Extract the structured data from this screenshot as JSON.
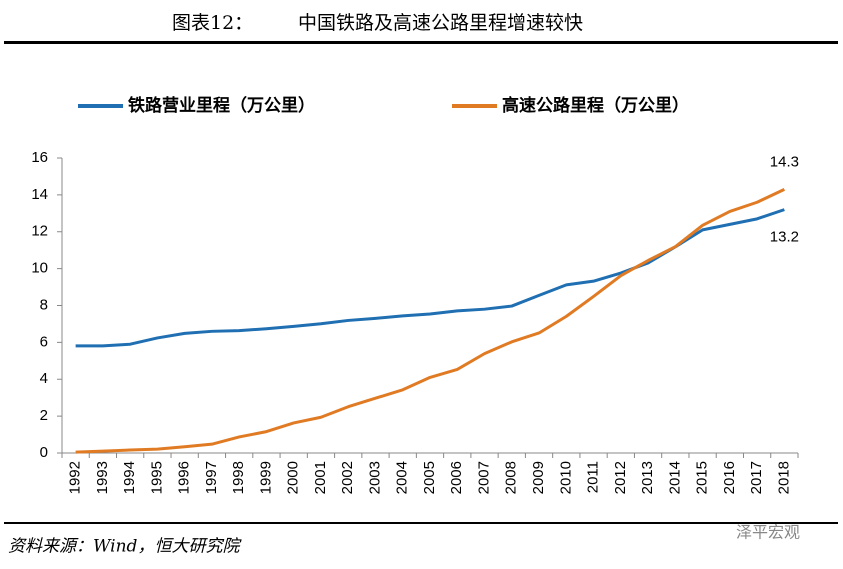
{
  "chart_data": {
    "type": "line",
    "figure_label": "图表12：",
    "title": "中国铁路及高速公路里程增速较快",
    "source": "资料来源：Wind，恒大研究院",
    "watermark": "泽平宏观",
    "categories": [
      "1992",
      "1993",
      "1994",
      "1995",
      "1996",
      "1997",
      "1998",
      "1999",
      "2000",
      "2001",
      "2002",
      "2003",
      "2004",
      "2005",
      "2006",
      "2007",
      "2008",
      "2009",
      "2010",
      "2011",
      "2012",
      "2013",
      "2014",
      "2015",
      "2016",
      "2017",
      "2018"
    ],
    "series": [
      {
        "name": "铁路营业里程（万公里）",
        "color": "#1f6fb2",
        "values": [
          5.81,
          5.81,
          5.9,
          6.24,
          6.49,
          6.6,
          6.64,
          6.74,
          6.87,
          7.01,
          7.19,
          7.3,
          7.44,
          7.54,
          7.71,
          7.8,
          7.97,
          8.55,
          9.12,
          9.32,
          9.76,
          10.31,
          11.18,
          12.1,
          12.4,
          12.7,
          13.2
        ]
      },
      {
        "name": "高速公路里程（万公里）",
        "color": "#e07b24",
        "values": [
          0.05,
          0.1,
          0.16,
          0.21,
          0.34,
          0.48,
          0.87,
          1.16,
          1.63,
          1.94,
          2.51,
          2.97,
          3.43,
          4.1,
          4.53,
          5.39,
          6.03,
          6.51,
          7.41,
          8.49,
          9.62,
          10.44,
          11.19,
          12.35,
          13.1,
          13.6,
          14.3
        ]
      }
    ],
    "ylim": [
      0,
      16
    ],
    "yticks": [
      0,
      2,
      4,
      6,
      8,
      10,
      12,
      14,
      16
    ],
    "grid": false
  }
}
